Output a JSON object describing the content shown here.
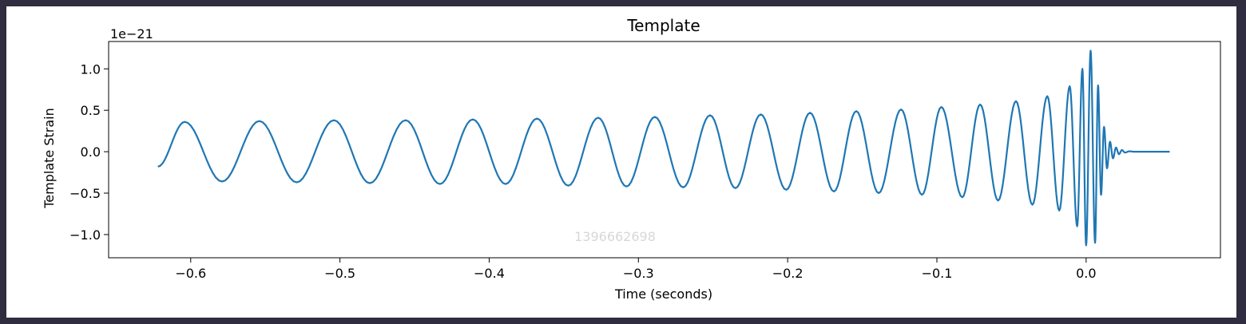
{
  "chart_data": {
    "type": "line",
    "title": "Template",
    "xlabel": "Time (seconds)",
    "ylabel": "Template Strain",
    "y_offset_text": "1e−21",
    "xlim": [
      -0.655,
      0.09
    ],
    "ylim": [
      -1.28,
      1.33
    ],
    "x_ticks": [
      {
        "value": -0.6,
        "label": "−0.6"
      },
      {
        "value": -0.5,
        "label": "−0.5"
      },
      {
        "value": -0.4,
        "label": "−0.4"
      },
      {
        "value": -0.3,
        "label": "−0.3"
      },
      {
        "value": -0.2,
        "label": "−0.2"
      },
      {
        "value": -0.1,
        "label": "−0.1"
      },
      {
        "value": 0.0,
        "label": "0.0"
      }
    ],
    "y_ticks": [
      {
        "value": 1.0,
        "label": "1.0"
      },
      {
        "value": 0.5,
        "label": "0.5"
      },
      {
        "value": 0.0,
        "label": "0.0"
      },
      {
        "value": -0.5,
        "label": "−0.5"
      },
      {
        "value": -1.0,
        "label": "−1.0"
      }
    ],
    "grid": false,
    "series": [
      {
        "color": "#1f77b4",
        "points": [
          [
            -0.622,
            -0.18
          ],
          [
            -0.604,
            0.36
          ],
          [
            -0.579,
            -0.36
          ],
          [
            -0.554,
            0.37
          ],
          [
            -0.529,
            -0.37
          ],
          [
            -0.504,
            0.38
          ],
          [
            -0.48,
            -0.38
          ],
          [
            -0.456,
            0.38
          ],
          [
            -0.433,
            -0.39
          ],
          [
            -0.411,
            0.39
          ],
          [
            -0.389,
            -0.39
          ],
          [
            -0.368,
            0.4
          ],
          [
            -0.347,
            -0.41
          ],
          [
            -0.327,
            0.41
          ],
          [
            -0.308,
            -0.42
          ],
          [
            -0.289,
            0.42
          ],
          [
            -0.27,
            -0.43
          ],
          [
            -0.252,
            0.44
          ],
          [
            -0.235,
            -0.44
          ],
          [
            -0.218,
            0.45
          ],
          [
            -0.201,
            -0.46
          ],
          [
            -0.185,
            0.47
          ],
          [
            -0.169,
            -0.48
          ],
          [
            -0.154,
            0.49
          ],
          [
            -0.139,
            -0.5
          ],
          [
            -0.124,
            0.51
          ],
          [
            -0.11,
            -0.52
          ],
          [
            -0.097,
            0.54
          ],
          [
            -0.083,
            -0.55
          ],
          [
            -0.071,
            0.57
          ],
          [
            -0.059,
            -0.59
          ],
          [
            -0.047,
            0.61
          ],
          [
            -0.036,
            -0.64
          ],
          [
            -0.026,
            0.67
          ],
          [
            -0.018,
            -0.71
          ],
          [
            -0.011,
            0.79
          ],
          [
            -0.006,
            -0.9
          ],
          [
            -0.0025,
            1.0
          ],
          [
            0.0,
            -1.13
          ],
          [
            0.003,
            1.22
          ],
          [
            0.006,
            -1.1
          ],
          [
            0.008,
            0.8
          ],
          [
            0.01,
            -0.52
          ],
          [
            0.012,
            0.3
          ],
          [
            0.014,
            -0.2
          ],
          [
            0.016,
            0.12
          ],
          [
            0.018,
            -0.08
          ],
          [
            0.02,
            0.05
          ],
          [
            0.022,
            -0.03
          ],
          [
            0.024,
            0.02
          ],
          [
            0.026,
            -0.01
          ],
          [
            0.029,
            0.005
          ],
          [
            0.032,
            0.0
          ],
          [
            0.056,
            0.0
          ]
        ]
      }
    ],
    "watermark": "1396662698"
  }
}
